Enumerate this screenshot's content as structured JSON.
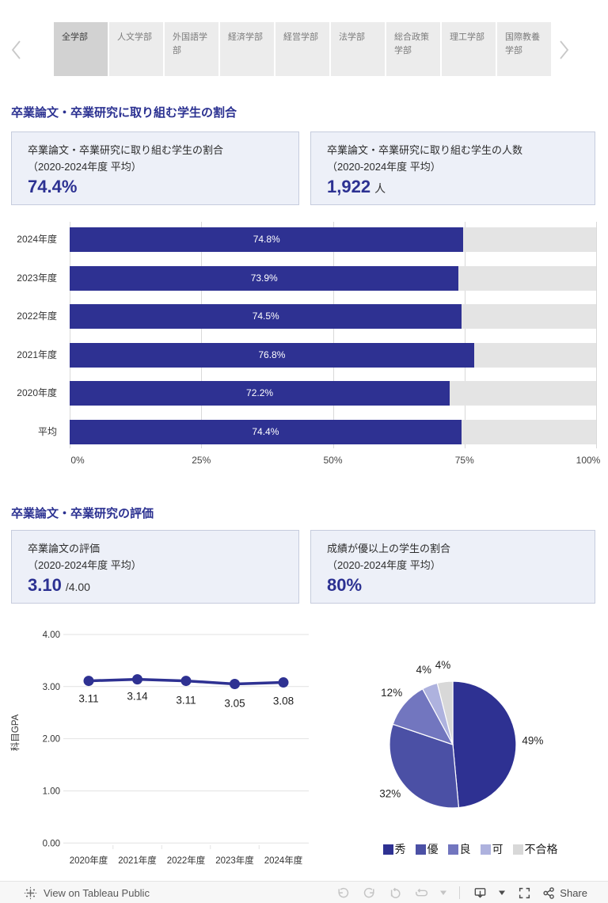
{
  "accent_color": "#2e3192",
  "header_tabs": {
    "active_index": 0,
    "items": [
      {
        "label": "全学部"
      },
      {
        "label": "人文学部"
      },
      {
        "label": "外国語学部"
      },
      {
        "label": "経済学部"
      },
      {
        "label": "経営学部"
      },
      {
        "label": "法学部"
      },
      {
        "label": "総合政策学部"
      },
      {
        "label": "理工学部"
      },
      {
        "label": "国際教養学部"
      }
    ]
  },
  "sections": [
    {
      "title": "卒業論文・卒業研究に取り組む学生の割合",
      "cards": [
        {
          "label": "卒業論文・卒業研究に取り組む学生の割合",
          "sub": "（2020-2024年度 平均）",
          "value": "74.4%",
          "unit": ""
        },
        {
          "label": "卒業論文・卒業研究に取り組む学生の人数",
          "sub": "（2020-2024年度 平均）",
          "value": "1,922",
          "unit": "人"
        }
      ]
    },
    {
      "title": "卒業論文・卒業研究の評価",
      "cards": [
        {
          "label": "卒業論文の評価",
          "sub": "（2020-2024年度 平均）",
          "value": "3.10",
          "unit": "/4.00"
        },
        {
          "label": "成績が優以上の学生の割合",
          "sub": "（2020-2024年度 平均）",
          "value": "80%",
          "unit": ""
        }
      ]
    }
  ],
  "chart_data": [
    {
      "id": "thesis-participation-bar",
      "type": "bar",
      "orientation": "horizontal",
      "categories": [
        "2024年度",
        "2023年度",
        "2022年度",
        "2021年度",
        "2020年度",
        "平均"
      ],
      "values": [
        74.8,
        73.9,
        74.5,
        76.8,
        72.2,
        74.4
      ],
      "value_labels": [
        "74.8%",
        "73.9%",
        "74.5%",
        "76.8%",
        "72.2%",
        "74.4%"
      ],
      "xlim": [
        0,
        100
      ],
      "x_ticks": [
        {
          "value": 0,
          "label": "0%"
        },
        {
          "value": 25,
          "label": "25%"
        },
        {
          "value": 50,
          "label": "50%"
        },
        {
          "value": 75,
          "label": "75%"
        },
        {
          "value": 100,
          "label": "100%"
        }
      ],
      "bar_color": "#2e3192",
      "track_color": "#e4e4e4",
      "grid": true
    },
    {
      "id": "thesis-gpa-line",
      "type": "line",
      "x": [
        "2020年度",
        "2021年度",
        "2022年度",
        "2023年度",
        "2024年度"
      ],
      "values": [
        3.11,
        3.14,
        3.11,
        3.05,
        3.08
      ],
      "value_labels": [
        "3.11",
        "3.14",
        "3.11",
        "3.05",
        "3.08"
      ],
      "ylabel": "科目GPA",
      "ylim": [
        0,
        4
      ],
      "y_ticks": [
        {
          "value": 0,
          "label": "0.00"
        },
        {
          "value": 1,
          "label": "1.00"
        },
        {
          "value": 2,
          "label": "2.00"
        },
        {
          "value": 3,
          "label": "3.00"
        },
        {
          "value": 4,
          "label": "4.00"
        }
      ],
      "line_color": "#2e3192",
      "grid": true
    },
    {
      "id": "grade-distribution-pie",
      "type": "pie",
      "labels": [
        "秀",
        "優",
        "良",
        "可",
        "不合格"
      ],
      "values": [
        49,
        32,
        12,
        4,
        4
      ],
      "value_labels": [
        "49%",
        "32%",
        "12%",
        "4%",
        "4%"
      ],
      "colors": [
        "#2e3192",
        "#4b50a5",
        "#7276bf",
        "#aeb2de",
        "#d8d8d8"
      ],
      "legend_position": "bottom"
    }
  ],
  "footer": {
    "view_label": "View on Tableau Public",
    "share_label": "Share",
    "icons": [
      "tableau-logo",
      "undo",
      "redo",
      "revert",
      "refresh",
      "caret-down",
      "download",
      "caret-down",
      "fullscreen",
      "share"
    ]
  }
}
